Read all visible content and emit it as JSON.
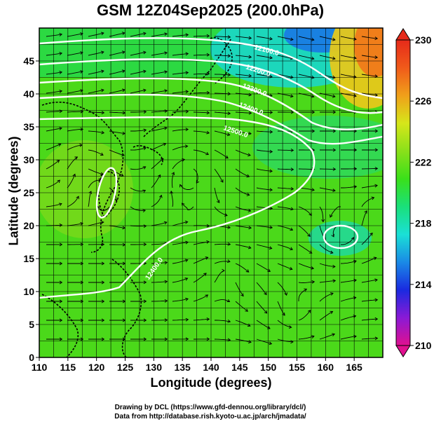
{
  "title": "GSM 12Z04Sep2025 (200.0hPa)",
  "xlabel": "Longitude (degrees)",
  "ylabel": "Latitude (degrees)",
  "credits": [
    "Drawing by DCL (https://www.gfd-dennou.org/library/dcl/)",
    "Data from http://database.rish.kyoto-u.ac.jp/arch/jmadata/"
  ],
  "chart_data": {
    "type": "heatmap",
    "x_ticks": [
      "110",
      "115",
      "120",
      "125",
      "130",
      "135",
      "140",
      "145",
      "150",
      "155",
      "160",
      "165"
    ],
    "y_ticks": [
      "0",
      "5",
      "10",
      "15",
      "20",
      "25",
      "30",
      "35",
      "40",
      "45"
    ],
    "xlim": [
      110,
      170
    ],
    "ylim": [
      0,
      50
    ],
    "colorbar": {
      "ticks": [
        "210",
        "214",
        "218",
        "222",
        "226",
        "230"
      ],
      "range": [
        210,
        230
      ],
      "colors": [
        "#e0108f",
        "#8a1ad6",
        "#1a2ae0",
        "#1a8ae6",
        "#1ae0d6",
        "#1ae07a",
        "#3ae01a",
        "#8ae01a",
        "#d6e61a",
        "#f0a01a",
        "#f05a1a",
        "#e62a1a"
      ]
    },
    "contour_labels": [
      "12100.0",
      "12200.0",
      "12300.0",
      "12400.0",
      "12500.0",
      "12400.0"
    ],
    "grid": true
  }
}
